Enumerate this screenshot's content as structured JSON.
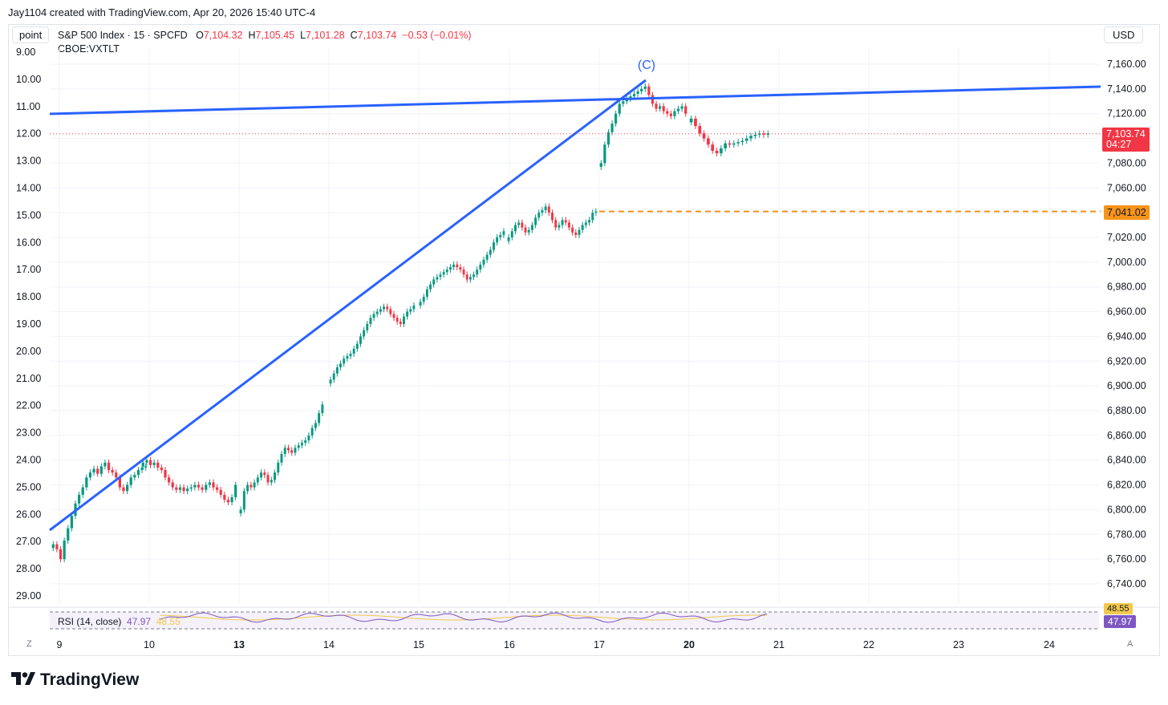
{
  "caption": "Jay1104 created with TradingView.com, Apr 20, 2026 15:40 UTC-4",
  "toolbar": {
    "point_label": "point",
    "currency_label": "USD"
  },
  "legend": {
    "symbol": "S&P 500 Index · 15 · SPCFD",
    "o_label": "O",
    "o_value": "7,104.32",
    "h_label": "H",
    "h_value": "7,105.45",
    "l_label": "L",
    "l_value": "7,101.28",
    "c_label": "C",
    "c_value": "7,103.74",
    "change": "−0.53 (−0.01%)",
    "overlay_symbol": "CBOE:VXTLT"
  },
  "rsi": {
    "label": "RSI (14, close)",
    "value": "47.97",
    "ma_value": "48.55",
    "upper_tag": "48.55"
  },
  "price_tags": {
    "last_price": "7,103.74",
    "countdown": "04:27",
    "prev_close": "7,041.02"
  },
  "buttons": {
    "z": "Z",
    "a": "A"
  },
  "brand": "TradingView",
  "colors": {
    "up": "#089981",
    "down": "#f23645",
    "trendline": "#2962ff",
    "prev_close": "#f7931a",
    "rsi": "#7e57c2",
    "rsi_ma": "#f2c94c"
  },
  "chart_data": {
    "type": "candlestick",
    "title": "S&P 500 Index · 15 · SPCFD",
    "right_axis": {
      "label": "USD",
      "ticks": [
        "7,160.00",
        "7,140.00",
        "7,120.00",
        "7,100.00",
        "7,080.00",
        "7,060.00",
        "7,040.00",
        "7,020.00",
        "7,000.00",
        "6,980.00",
        "6,960.00",
        "6,940.00",
        "6,920.00",
        "6,900.00",
        "6,880.00",
        "6,860.00",
        "6,840.00",
        "6,820.00",
        "6,800.00",
        "6,780.00",
        "6,760.00",
        "6,740.00"
      ],
      "range": [
        6728,
        7170
      ]
    },
    "left_axis": {
      "label": "point",
      "ticks": [
        "9.00",
        "10.00",
        "11.00",
        "12.00",
        "13.00",
        "14.00",
        "15.00",
        "16.00",
        "17.00",
        "18.00",
        "19.00",
        "20.00",
        "21.00",
        "22.00",
        "23.00",
        "24.00",
        "25.00",
        "26.00",
        "27.00",
        "28.00",
        "29.00"
      ],
      "range": [
        8.9,
        29.0
      ],
      "inverted": true
    },
    "x_ticks": [
      {
        "label": "9",
        "bold": false
      },
      {
        "label": "10",
        "bold": false
      },
      {
        "label": "13",
        "bold": true
      },
      {
        "label": "14",
        "bold": false
      },
      {
        "label": "15",
        "bold": false
      },
      {
        "label": "16",
        "bold": false
      },
      {
        "label": "17",
        "bold": false
      },
      {
        "label": "20",
        "bold": true
      },
      {
        "label": "21",
        "bold": false
      },
      {
        "label": "22",
        "bold": false
      },
      {
        "label": "23",
        "bold": false
      },
      {
        "label": "24",
        "bold": false
      }
    ],
    "sessions": [
      {
        "day": "9",
        "points": [
          6772,
          6768,
          6760,
          6775,
          6785,
          6795,
          6805,
          6812,
          6818,
          6826,
          6830,
          6833,
          6829,
          6835,
          6838,
          6832,
          6830,
          6826,
          6818,
          6815,
          6820,
          6826,
          6828,
          6832,
          6834,
          6835
        ]
      },
      {
        "day": "10",
        "points": [
          6838,
          6840,
          6836,
          6838,
          6834,
          6832,
          6826,
          6822,
          6818,
          6816,
          6818,
          6815,
          6817,
          6818,
          6820,
          6818,
          6816,
          6820,
          6822,
          6818,
          6816,
          6812,
          6808,
          6806,
          6810,
          6820
        ]
      },
      {
        "day": "13",
        "points": [
          6800,
          6815,
          6820,
          6818,
          6822,
          6826,
          6830,
          6828,
          6822,
          6824,
          6830,
          6838,
          6845,
          6850,
          6848,
          6846,
          6850,
          6852,
          6854,
          6856,
          6860,
          6866,
          6870,
          6878,
          6885
        ]
      },
      {
        "day": "14",
        "points": [
          6905,
          6910,
          6915,
          6918,
          6922,
          6924,
          6926,
          6930,
          6934,
          6940,
          6945,
          6950,
          6955,
          6958,
          6960,
          6962,
          6964,
          6962,
          6958,
          6955,
          6952,
          6950,
          6956,
          6960,
          6962,
          6965
        ]
      },
      {
        "day": "15",
        "points": [
          6968,
          6972,
          6978,
          6982,
          6986,
          6988,
          6990,
          6992,
          6994,
          6996,
          6998,
          6996,
          6994,
          6990,
          6986,
          6988,
          6990,
          6994,
          6998,
          7002,
          7006,
          7010,
          7016,
          7020,
          7022,
          7025
        ]
      },
      {
        "day": "16",
        "points": [
          7020,
          7025,
          7030,
          7032,
          7028,
          7024,
          7026,
          7030,
          7036,
          7040,
          7042,
          7045,
          7040,
          7034,
          7028,
          7030,
          7034,
          7032,
          7028,
          7024,
          7022,
          7026,
          7030,
          7032,
          7034,
          7040,
          7041
        ]
      },
      {
        "day": "17",
        "points": [
          7080,
          7095,
          7105,
          7112,
          7120,
          7128,
          7130,
          7132,
          7134,
          7136,
          7138,
          7140,
          7142,
          7135,
          7128,
          7124,
          7126,
          7122,
          7120,
          7118,
          7122,
          7124,
          7126,
          7120
        ]
      },
      {
        "day": "20",
        "points": [
          7116,
          7110,
          7104,
          7100,
          7095,
          7090,
          7088,
          7092,
          7096,
          7095,
          7096,
          7097,
          7098,
          7100,
          7102,
          7103,
          7104,
          7103,
          7104
        ]
      }
    ],
    "annotations": [
      {
        "text": "(C)",
        "price": 7150
      }
    ],
    "trendlines": [
      {
        "name": "upper-trendline",
        "from": {
          "day": "9",
          "price": 7118
        },
        "to": {
          "day": "24+",
          "price": 7140
        }
      },
      {
        "name": "rising-trendline",
        "from": {
          "day": "9",
          "price": 6794
        },
        "to": {
          "day": "17",
          "price": 7142
        }
      }
    ],
    "prev_close": 7041.02,
    "last_price": 7103.74
  }
}
